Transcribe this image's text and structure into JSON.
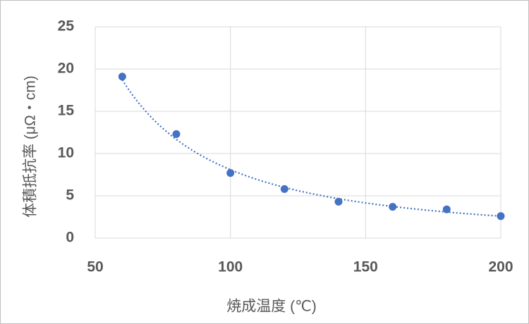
{
  "chart_data": {
    "type": "scatter",
    "x_label": "焼成温度 (℃)",
    "y_label": "体積抵抗率 (μΩ・cm)",
    "series": [
      {
        "color": "#4472c4",
        "x": [
          60,
          80,
          100,
          120,
          140,
          160,
          180,
          200
        ],
        "values": [
          19.1,
          12.3,
          7.7,
          5.8,
          4.3,
          3.7,
          3.4,
          2.6
        ]
      }
    ],
    "trendline": "power",
    "xlim": [
      50,
      200
    ],
    "xticks": [
      50,
      100,
      150,
      200
    ],
    "ylim": [
      0,
      25
    ],
    "yticks": [
      0,
      5,
      10,
      15,
      20,
      25
    ],
    "grid": true
  }
}
